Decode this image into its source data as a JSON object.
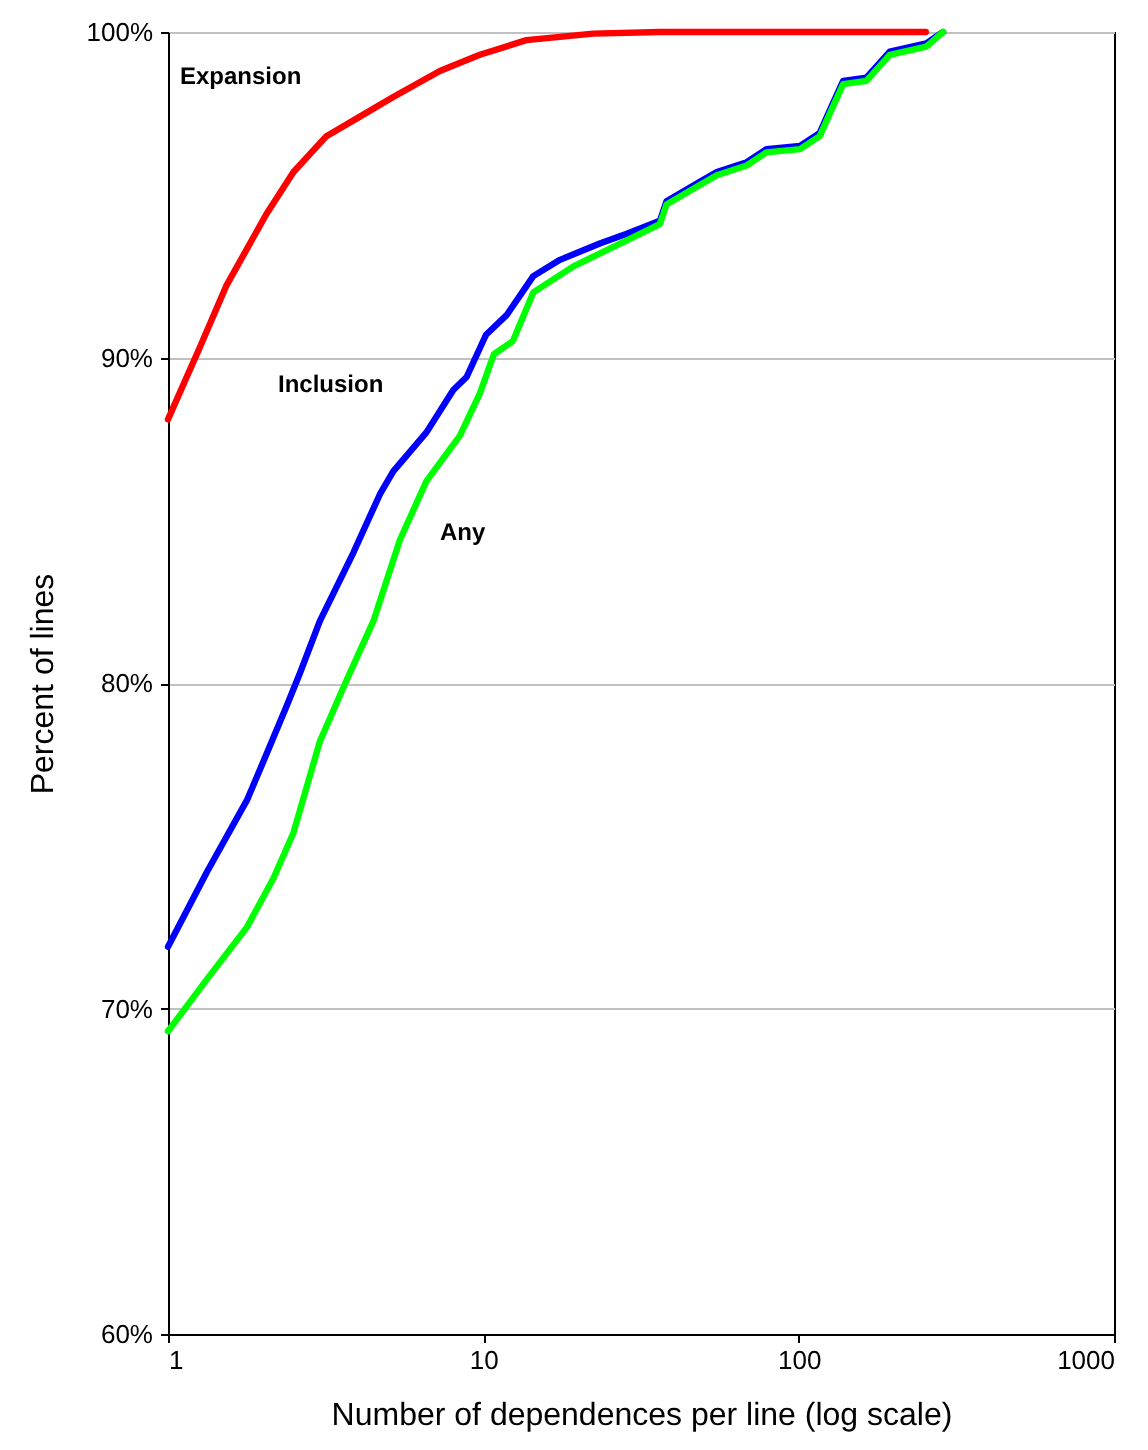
{
  "chart_data": {
    "type": "line",
    "xlabel": "Number of dependences per line (log scale)",
    "ylabel": "Percent of lines",
    "log": "x",
    "xlim": [
      1,
      1000
    ],
    "xticks": [
      1,
      10,
      100,
      1000
    ],
    "ylim": [
      60,
      100
    ],
    "yticks": [
      {
        "value": 60,
        "label": "60%"
      },
      {
        "value": 70,
        "label": "70%"
      },
      {
        "value": 80,
        "label": "80%"
      },
      {
        "value": 90,
        "label": "90%"
      },
      {
        "value": 100,
        "label": "100%"
      }
    ],
    "grid": "y",
    "line_style": "solid",
    "series": [
      {
        "name": "Expansion",
        "color": "#ff0000",
        "x": [
          1,
          1.26,
          1.53,
          2.05,
          2.5,
          3.18,
          4.06,
          5.18,
          7.28,
          9.75,
          13.7,
          22.3,
          36.3,
          100,
          253
        ],
        "values": [
          88.1,
          90.3,
          92.2,
          94.4,
          95.7,
          96.8,
          97.4,
          98.0,
          98.8,
          99.3,
          99.75,
          99.95,
          100,
          100,
          100
        ]
      },
      {
        "name": "Inclusion",
        "color": "#0000ff",
        "x": [
          1,
          1.33,
          1.78,
          2.05,
          2.38,
          2.62,
          3.03,
          3.87,
          4.7,
          5.18,
          6.6,
          8.03,
          8.85,
          10.2,
          11.85,
          14.4,
          17.5,
          23.4,
          28.5,
          36.3,
          38.1,
          48.6,
          55,
          68.4,
          79,
          101,
          116.7,
          125.6,
          138.4,
          164,
          194.5,
          254,
          287
        ],
        "values": [
          71.9,
          74.2,
          76.4,
          77.8,
          79.3,
          80.3,
          81.9,
          84.0,
          85.8,
          86.5,
          87.7,
          89.0,
          89.4,
          90.7,
          91.3,
          92.5,
          93.0,
          93.5,
          93.8,
          94.2,
          94.8,
          95.4,
          95.7,
          96.0,
          96.4,
          96.5,
          96.9,
          97.6,
          98.5,
          98.6,
          99.4,
          99.65,
          100
        ]
      },
      {
        "name": "Any",
        "color": "#00ff00",
        "x": [
          1,
          1.33,
          1.78,
          2.16,
          2.5,
          3.03,
          3.69,
          4.48,
          5.44,
          6.6,
          8.43,
          9.75,
          10.8,
          12.4,
          14.4,
          19.3,
          28.5,
          36.3,
          38.1,
          48.6,
          55,
          68.4,
          79,
          101,
          116.7,
          125.6,
          138.4,
          164,
          194.5,
          254,
          287
        ],
        "values": [
          69.3,
          70.9,
          72.5,
          74.0,
          75.4,
          78.2,
          80.1,
          81.9,
          84.4,
          86.2,
          87.6,
          88.9,
          90.1,
          90.5,
          92.0,
          92.8,
          93.6,
          94.1,
          94.7,
          95.3,
          95.6,
          95.9,
          96.3,
          96.4,
          96.8,
          97.5,
          98.4,
          98.5,
          99.3,
          99.55,
          100
        ]
      }
    ]
  }
}
